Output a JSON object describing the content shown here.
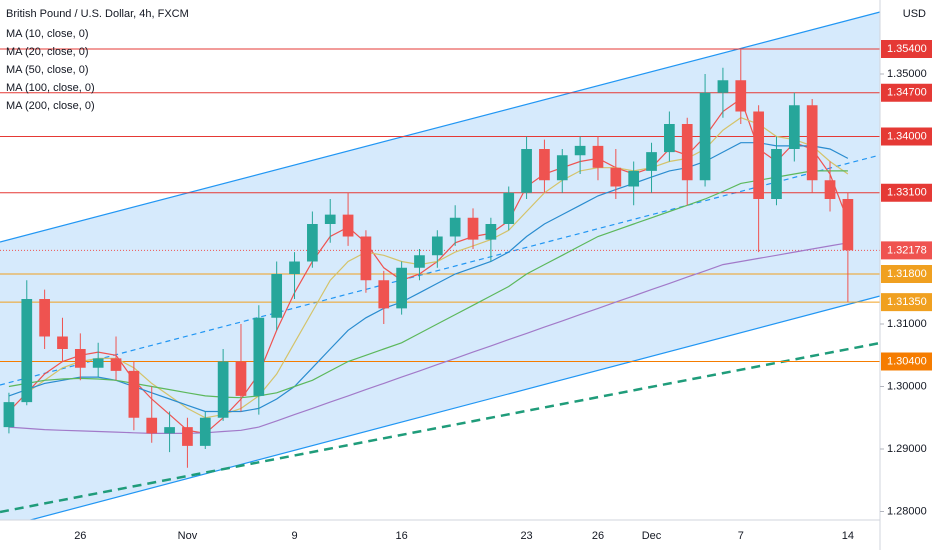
{
  "chart_data": {
    "type": "candlestick",
    "title": "British Pound / U.S. Dollar, 4h, FXCM",
    "currency": "USD",
    "categories": [
      null,
      null,
      null,
      null,
      "26",
      null,
      null,
      null,
      null,
      null,
      "Nov",
      null,
      null,
      null,
      null,
      null,
      "9",
      null,
      null,
      null,
      null,
      null,
      "16",
      null,
      null,
      null,
      null,
      null,
      null,
      "23",
      null,
      null,
      null,
      "26",
      null,
      null,
      "Dec",
      null,
      null,
      null,
      null,
      "7",
      null,
      null,
      null,
      null,
      null,
      "14"
    ],
    "candles": {
      "up_color": "#26a69a",
      "down_color": "#ef5350",
      "open": [
        1.2935,
        1.2975,
        1.314,
        1.308,
        1.306,
        1.303,
        1.3045,
        1.3025,
        1.295,
        1.2925,
        1.2935,
        1.2905,
        1.295,
        1.304,
        1.2985,
        1.311,
        1.318,
        1.32,
        1.326,
        1.3275,
        1.324,
        1.317,
        1.3125,
        1.319,
        1.321,
        1.324,
        1.327,
        1.3235,
        1.326,
        1.331,
        1.338,
        1.333,
        1.337,
        1.3385,
        1.335,
        1.332,
        1.3345,
        1.3375,
        1.342,
        1.333,
        1.347,
        1.349,
        1.344,
        1.33,
        1.338,
        1.345,
        1.333,
        1.33
      ],
      "high": [
        1.299,
        1.317,
        1.3155,
        1.311,
        1.3085,
        1.307,
        1.308,
        1.304,
        1.3,
        1.296,
        1.295,
        1.296,
        1.306,
        1.31,
        1.313,
        1.32,
        1.3215,
        1.328,
        1.33,
        1.331,
        1.325,
        1.3185,
        1.32,
        1.322,
        1.325,
        1.329,
        1.3285,
        1.327,
        1.332,
        1.34,
        1.3395,
        1.338,
        1.34,
        1.34,
        1.338,
        1.336,
        1.339,
        1.344,
        1.343,
        1.35,
        1.351,
        1.354,
        1.345,
        1.34,
        1.347,
        1.346,
        1.336,
        1.331
      ],
      "low": [
        1.2925,
        1.297,
        1.306,
        1.304,
        1.301,
        1.3015,
        1.301,
        1.293,
        1.291,
        1.2895,
        1.287,
        1.29,
        1.2945,
        1.296,
        1.2955,
        1.309,
        1.314,
        1.319,
        1.323,
        1.3225,
        1.315,
        1.31,
        1.3115,
        1.317,
        1.319,
        1.3225,
        1.322,
        1.32,
        1.325,
        1.33,
        1.331,
        1.331,
        1.334,
        1.333,
        1.33,
        1.329,
        1.331,
        1.336,
        1.329,
        1.332,
        1.343,
        1.342,
        1.3215,
        1.329,
        1.336,
        1.331,
        1.328,
        1.3135
      ],
      "close": [
        1.2975,
        1.314,
        1.308,
        1.306,
        1.303,
        1.3045,
        1.3025,
        1.295,
        1.2925,
        1.2935,
        1.2905,
        1.295,
        1.304,
        1.2985,
        1.311,
        1.318,
        1.32,
        1.326,
        1.3275,
        1.324,
        1.317,
        1.3125,
        1.319,
        1.321,
        1.324,
        1.327,
        1.3235,
        1.326,
        1.331,
        1.338,
        1.333,
        1.337,
        1.3385,
        1.335,
        1.332,
        1.3345,
        1.3375,
        1.342,
        1.333,
        1.347,
        1.349,
        1.344,
        1.33,
        1.338,
        1.345,
        1.333,
        1.33,
        1.3218
      ]
    },
    "series": [
      {
        "name": "MA (10, close, 0)",
        "color": "#ef5350",
        "values": [
          1.296,
          1.299,
          1.302,
          1.304,
          1.305,
          1.3055,
          1.305,
          1.301,
          1.298,
          1.2955,
          1.293,
          1.2925,
          1.295,
          1.298,
          1.302,
          1.309,
          1.315,
          1.32,
          1.324,
          1.3255,
          1.323,
          1.319,
          1.317,
          1.318,
          1.32,
          1.323,
          1.324,
          1.3245,
          1.3265,
          1.332,
          1.334,
          1.335,
          1.336,
          1.3365,
          1.335,
          1.334,
          1.335,
          1.338,
          1.337,
          1.34,
          1.344,
          1.346,
          1.338,
          1.336,
          1.339,
          1.338,
          1.334,
          1.3265
        ]
      },
      {
        "name": "MA (20, close, 0)",
        "color": "#d4c36a",
        "values": [
          null,
          1.299,
          1.301,
          1.303,
          1.304,
          1.3045,
          1.3045,
          1.303,
          1.3005,
          1.2985,
          1.2965,
          1.295,
          1.2955,
          1.2965,
          1.2985,
          1.302,
          1.307,
          1.312,
          1.317,
          1.32,
          1.3215,
          1.321,
          1.32,
          1.3195,
          1.32,
          1.3215,
          1.3225,
          1.3235,
          1.325,
          1.328,
          1.331,
          1.333,
          1.3345,
          1.335,
          1.335,
          1.3345,
          1.335,
          1.336,
          1.3365,
          1.338,
          1.341,
          1.343,
          1.342,
          1.34,
          1.3395,
          1.3385,
          1.336,
          1.334
        ]
      },
      {
        "name": "MA (50, close, 0)",
        "color": "#2a8ccf",
        "values": [
          1.2985,
          1.2995,
          1.3005,
          1.301,
          1.3015,
          1.3015,
          1.301,
          1.3,
          1.299,
          1.298,
          1.297,
          1.296,
          1.296,
          1.296,
          1.2965,
          1.298,
          1.3,
          1.303,
          1.306,
          1.309,
          1.311,
          1.3125,
          1.3135,
          1.315,
          1.3165,
          1.318,
          1.319,
          1.32,
          1.3215,
          1.324,
          1.326,
          1.3275,
          1.329,
          1.3305,
          1.3315,
          1.3325,
          1.3335,
          1.3345,
          1.335,
          1.336,
          1.3375,
          1.339,
          1.339,
          1.3385,
          1.3385,
          1.3385,
          1.338,
          1.3365
        ]
      },
      {
        "name": "MA (100, close, 0)",
        "color": "#5cb85c",
        "values": [
          1.3,
          1.3005,
          1.301,
          1.3012,
          1.3013,
          1.3012,
          1.301,
          1.3005,
          1.3,
          1.2995,
          1.299,
          1.2985,
          1.2983,
          1.2982,
          1.2985,
          1.299,
          1.3,
          1.301,
          1.3025,
          1.304,
          1.305,
          1.306,
          1.307,
          1.3085,
          1.31,
          1.3115,
          1.313,
          1.3145,
          1.316,
          1.318,
          1.3195,
          1.321,
          1.3225,
          1.324,
          1.325,
          1.326,
          1.327,
          1.328,
          1.329,
          1.33,
          1.3312,
          1.3325,
          1.333,
          1.3335,
          1.334,
          1.3345,
          1.3345,
          1.3345
        ]
      },
      {
        "name": "MA (200, close, 0)",
        "color": "#a27ac9",
        "values": [
          1.2935,
          1.2933,
          1.2931,
          1.293,
          1.2929,
          1.2928,
          1.2927,
          1.2926,
          1.2925,
          1.2925,
          1.2925,
          1.2926,
          1.2928,
          1.293,
          1.2935,
          1.2945,
          1.2955,
          1.2965,
          1.2975,
          1.2985,
          1.2995,
          1.3005,
          1.3015,
          1.3025,
          1.3035,
          1.3045,
          1.3055,
          1.3065,
          1.3075,
          1.3085,
          1.3095,
          1.3105,
          1.3115,
          1.3125,
          1.3135,
          1.3145,
          1.3155,
          1.3165,
          1.3175,
          1.3185,
          1.3195,
          1.32,
          1.3205,
          1.321,
          1.3215,
          1.322,
          1.3225,
          1.323
        ]
      }
    ],
    "levels": [
      {
        "value": 1.354,
        "label": "1.35400",
        "color": "#e53935"
      },
      {
        "value": 1.347,
        "label": "1.34700",
        "color": "#e53935"
      },
      {
        "value": 1.34,
        "label": "1.34000",
        "color": "#e53935"
      },
      {
        "value": 1.331,
        "label": "1.33100",
        "color": "#e53935"
      },
      {
        "value": 1.32178,
        "label": "1.32178",
        "color": "#ef5350",
        "dotted": true
      },
      {
        "value": 1.318,
        "label": "1.31800",
        "color": "#f0a020"
      },
      {
        "value": 1.3135,
        "label": "1.31350",
        "color": "#f0a020"
      },
      {
        "value": 1.304,
        "label": "1.30400",
        "color": "#f57c00"
      }
    ],
    "ylim": [
      1.27864,
      1.36184
    ],
    "yticks": [
      {
        "value": 1.28,
        "label": "1.28000"
      },
      {
        "value": 1.29,
        "label": "1.29000"
      },
      {
        "value": 1.3,
        "label": "1.30000"
      },
      {
        "value": 1.31,
        "label": "1.31000"
      },
      {
        "value": 1.35,
        "label": "1.35000"
      }
    ],
    "grid": false
  }
}
